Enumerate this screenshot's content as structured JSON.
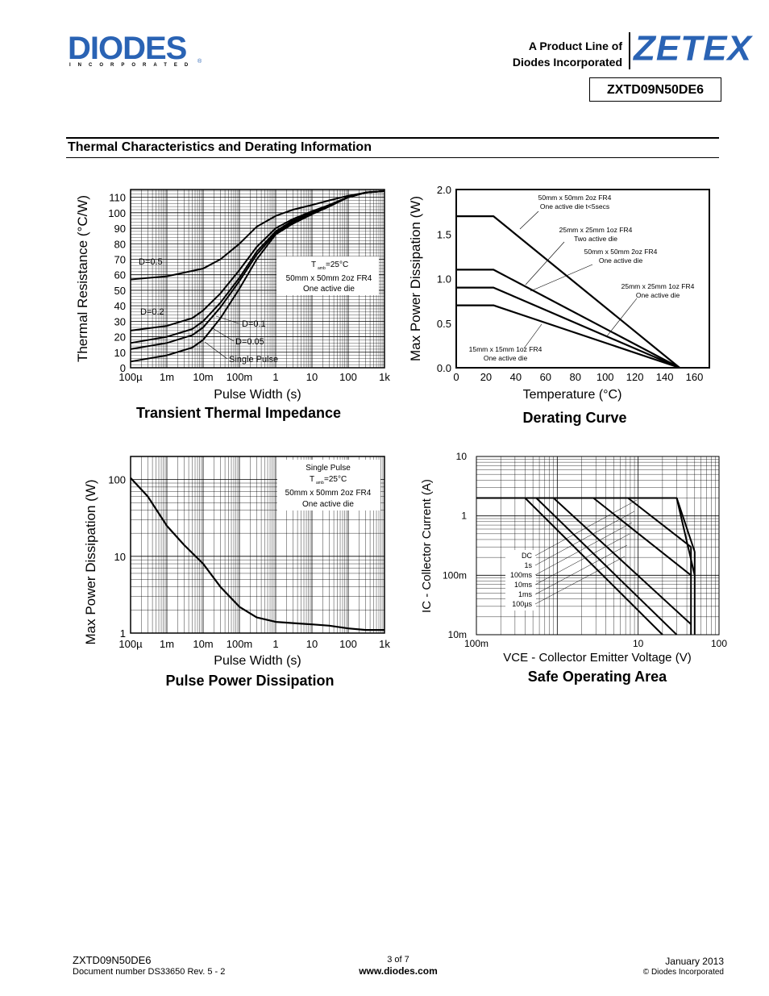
{
  "header": {
    "logo_text": "DIODES",
    "logo_subtext": "INCORPORATED",
    "logo_reg": "®",
    "product_line_1": "A Product Line of",
    "product_line_2": "Diodes Incorporated",
    "brand": "ZETEX",
    "part_number": "ZXTD09N50DE6"
  },
  "section_title": "Thermal Characteristics and Derating Information",
  "footer": {
    "part": "ZXTD09N50DE6",
    "doc": "Document number DS33650  Rev. 5 - 2",
    "page": "3 of 7",
    "url": "www.diodes.com",
    "date": "January 2013",
    "copyright": "© Diodes Incorporated"
  },
  "chart_data": [
    {
      "type": "line",
      "title": "Transient Thermal Impedance",
      "xlabel": "Pulse Width (s)",
      "ylabel": "Thermal Resistance (°C/W)",
      "x_scale": "log",
      "xlim": [
        0.0001,
        1000
      ],
      "ylim": [
        0,
        115
      ],
      "x_ticks": [
        "100µ",
        "1m",
        "10m",
        "100m",
        "1",
        "10",
        "100",
        "1k"
      ],
      "y_ticks": [
        "0",
        "10",
        "20",
        "30",
        "40",
        "50",
        "60",
        "70",
        "80",
        "90",
        "100",
        "110"
      ],
      "annotation": [
        "T",
        "amb",
        "=25°C",
        "50mm x 50mm 2oz FR4",
        "One active die"
      ],
      "series": [
        {
          "name": "D=0.5",
          "x": [
            0.0001,
            0.001,
            0.01,
            0.03,
            0.1,
            0.3,
            1,
            3,
            10,
            30,
            100,
            300,
            1000
          ],
          "y": [
            57,
            59,
            64,
            70,
            80,
            91,
            98,
            102,
            105,
            108,
            111,
            113,
            114
          ]
        },
        {
          "name": "D=0.2",
          "x": [
            0.0001,
            0.001,
            0.005,
            0.01,
            0.03,
            0.1,
            0.3,
            1,
            3,
            10,
            30,
            100,
            300,
            1000
          ],
          "y": [
            24,
            27,
            32,
            37,
            48,
            63,
            78,
            90,
            96,
            101,
            105,
            110,
            113,
            114
          ]
        },
        {
          "name": "D=0.1",
          "x": [
            0.0001,
            0.001,
            0.005,
            0.01,
            0.03,
            0.1,
            0.3,
            1,
            3,
            10,
            30,
            100,
            300,
            1000
          ],
          "y": [
            16,
            20,
            25,
            30,
            42,
            58,
            75,
            88,
            95,
            100,
            105,
            110,
            113,
            114
          ]
        },
        {
          "name": "D=0.05",
          "x": [
            0.0001,
            0.001,
            0.005,
            0.01,
            0.03,
            0.1,
            0.3,
            1,
            3,
            10,
            30,
            100,
            300,
            1000
          ],
          "y": [
            12,
            16,
            21,
            26,
            39,
            56,
            73,
            87,
            94,
            100,
            105,
            110,
            113,
            114
          ]
        },
        {
          "name": "Single Pulse",
          "x": [
            0.0001,
            0.001,
            0.005,
            0.01,
            0.03,
            0.1,
            0.3,
            1,
            3,
            10,
            30,
            100,
            300,
            1000
          ],
          "y": [
            4,
            8,
            13,
            18,
            32,
            51,
            70,
            86,
            93,
            99,
            104,
            110,
            113,
            114
          ]
        }
      ]
    },
    {
      "type": "line",
      "title": "Derating Curve",
      "xlabel": "Temperature (°C)",
      "ylabel": "Max Power Dissipation (W)",
      "xlim": [
        0,
        170
      ],
      "ylim": [
        0,
        2
      ],
      "x_ticks": [
        "0",
        "20",
        "40",
        "60",
        "80",
        "100",
        "120",
        "140",
        "160"
      ],
      "y_ticks": [
        "0.0",
        "0.5",
        "1.0",
        "1.5",
        "2.0"
      ],
      "series": [
        {
          "name": "50mm x 50mm 2oz FR4 One active die t<5secs",
          "x": [
            0,
            25,
            150
          ],
          "y": [
            1.7,
            1.7,
            0
          ]
        },
        {
          "name": "25mm x 25mm 1oz FR4 Two active die",
          "x": [
            0,
            25,
            150
          ],
          "y": [
            1.1,
            1.1,
            0
          ]
        },
        {
          "name": "50mm x 50mm 2oz FR4 One active die",
          "x": [
            0,
            25,
            150
          ],
          "y": [
            0.9,
            0.9,
            0
          ]
        },
        {
          "name": "25mm x 25mm 1oz FR4 One active die",
          "x": [
            0,
            25,
            150
          ],
          "y": [
            0.7,
            0.7,
            0
          ]
        },
        {
          "name": "15mm x 15mm 1oz FR4 One active die",
          "x": [
            0,
            25,
            150
          ],
          "y": [
            0.7,
            0.7,
            0
          ]
        }
      ]
    },
    {
      "type": "line",
      "title": "Pulse Power Dissipation",
      "xlabel": "Pulse Width (s)",
      "ylabel": "Max Power Dissipation (W)",
      "x_scale": "log",
      "y_scale": "log",
      "xlim": [
        0.0001,
        1000
      ],
      "ylim": [
        1,
        200
      ],
      "x_ticks": [
        "100µ",
        "1m",
        "10m",
        "100m",
        "1",
        "10",
        "100",
        "1k"
      ],
      "y_ticks": [
        "1",
        "10",
        "100"
      ],
      "annotation": [
        "Single Pulse",
        "T",
        "amb",
        "=25°C",
        "50mm x 50mm 2oz FR4",
        "One active die"
      ],
      "series": [
        {
          "name": "Single Pulse",
          "x": [
            0.0001,
            0.0003,
            0.001,
            0.003,
            0.01,
            0.03,
            0.1,
            0.3,
            1,
            3,
            10,
            30,
            100,
            300,
            1000
          ],
          "y": [
            105,
            60,
            25,
            14,
            8,
            4,
            2.2,
            1.6,
            1.4,
            1.35,
            1.3,
            1.25,
            1.15,
            1.1,
            1.1
          ]
        }
      ]
    },
    {
      "type": "line",
      "title": "Safe Operating Area",
      "xlabel": "VCE - Collector Emitter Voltage (V)",
      "ylabel": "IC - Collector Current (A)",
      "x_scale": "log",
      "y_scale": "log",
      "xlim": [
        0.1,
        100
      ],
      "ylim": [
        0.01,
        10
      ],
      "x_ticks": [
        "100m",
        "10",
        "100"
      ],
      "y_ticks": [
        "10m",
        "100m",
        "1",
        "10"
      ],
      "legend": [
        "DC",
        "1s",
        "100ms",
        "10ms",
        "1ms",
        "100µs"
      ],
      "series": [
        {
          "name": "DC",
          "x": [
            0.1,
            0.4,
            20
          ],
          "y": [
            2,
            2,
            0.01
          ]
        },
        {
          "name": "1s",
          "x": [
            0.1,
            0.55,
            30
          ],
          "y": [
            2,
            2,
            0.01
          ]
        },
        {
          "name": "100ms",
          "x": [
            0.1,
            0.9,
            45
          ],
          "y": [
            2,
            2,
            0.015
          ]
        },
        {
          "name": "10ms",
          "x": [
            0.1,
            2.8,
            45
          ],
          "y": [
            2,
            2,
            0.1
          ]
        },
        {
          "name": "1ms",
          "x": [
            0.1,
            7.5,
            45
          ],
          "y": [
            2,
            2,
            0.3
          ]
        },
        {
          "name": "100µs",
          "x": [
            0.1,
            30,
            50
          ],
          "y": [
            2,
            2,
            0.1
          ]
        }
      ]
    }
  ]
}
